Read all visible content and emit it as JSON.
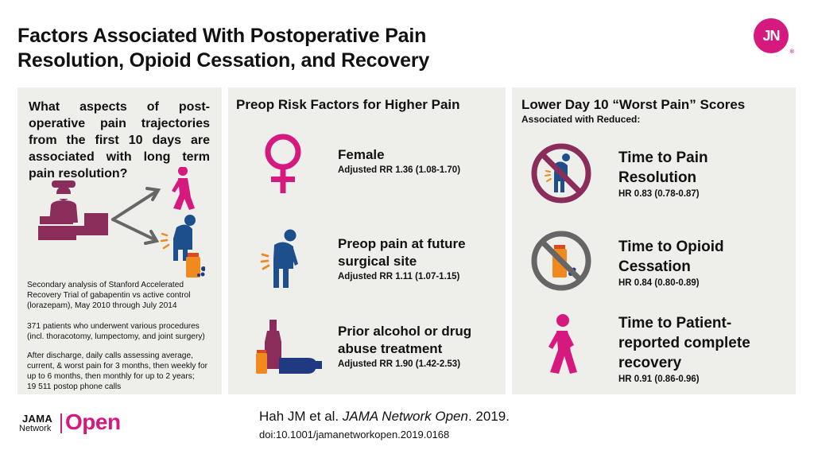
{
  "header": {
    "title_line1": "Factors Associated With Postoperative Pain",
    "title_line2": "Resolution, Opioid Cessation, and Recovery",
    "logo_text": "JN",
    "logo_mark": "®"
  },
  "left": {
    "question": "What aspects of post-operative pain trajectories from the first 10 days are associated with long term pain resolution?",
    "study_text": [
      "Secondary analysis of Stanford Accelerated",
      "Recovery Trial of gabapentin vs active control",
      "(lorazepam), May 2010 through July 2014"
    ],
    "patients_text": [
      "371 patients who underwent various procedures",
      "(incl. thoracotomy, lumpectomy, and joint surgery)"
    ],
    "calls_text": [
      "After discharge, daily calls assessing average,",
      "current, & worst pain for 3 months, then weekly for",
      "up to 6 months, then monthly  for up to 2 years;",
      "19 511 postop phone calls"
    ]
  },
  "middle": {
    "heading": "Preop Risk Factors for Higher Pain",
    "factors": [
      {
        "name_lines": [
          "Female"
        ],
        "stat": "Adjusted  RR 1.36 (1.08-1.70)"
      },
      {
        "name_lines": [
          "Preop pain at future",
          "surgical site"
        ],
        "stat": "Adjusted  RR 1.11 (1.07-1.15)"
      },
      {
        "name_lines": [
          "Prior alcohol or drug",
          "abuse treatment"
        ],
        "stat": "Adjusted  RR 1.90 (1.42-2.53)"
      }
    ]
  },
  "right": {
    "heading": "Lower Day 10 “Worst Pain” Scores",
    "subheading": "Associated with Reduced:",
    "outcomes": [
      {
        "name_lines": [
          "Time to Pain",
          "Resolution"
        ],
        "stat": "HR  0.83 (0.78-0.87)"
      },
      {
        "name_lines": [
          "Time to Opioid",
          "Cessation"
        ],
        "stat": "HR  0.84 (0.80-0.89)"
      },
      {
        "name_lines": [
          "Time to Patient-",
          "reported complete",
          "recovery"
        ],
        "stat": "HR  0.91 (0.86-0.96)"
      }
    ]
  },
  "footer": {
    "jama_top": "JAMA",
    "jama_bottom": "Network",
    "jama_open": "Open",
    "citation_authors": "Hah JM et al. ",
    "citation_journal": "JAMA Network Open",
    "citation_year": ". 2019.",
    "doi": "doi:10.1001/jamanetworkopen.2019.0168"
  },
  "colors": {
    "magenta": "#d6197f",
    "plum": "#8a2d5a",
    "blue": "#1d4f8c",
    "orange": "#f08a1e",
    "navy": "#1f3a80",
    "panel": "#eeeeea",
    "gray_icon": "#666666"
  }
}
